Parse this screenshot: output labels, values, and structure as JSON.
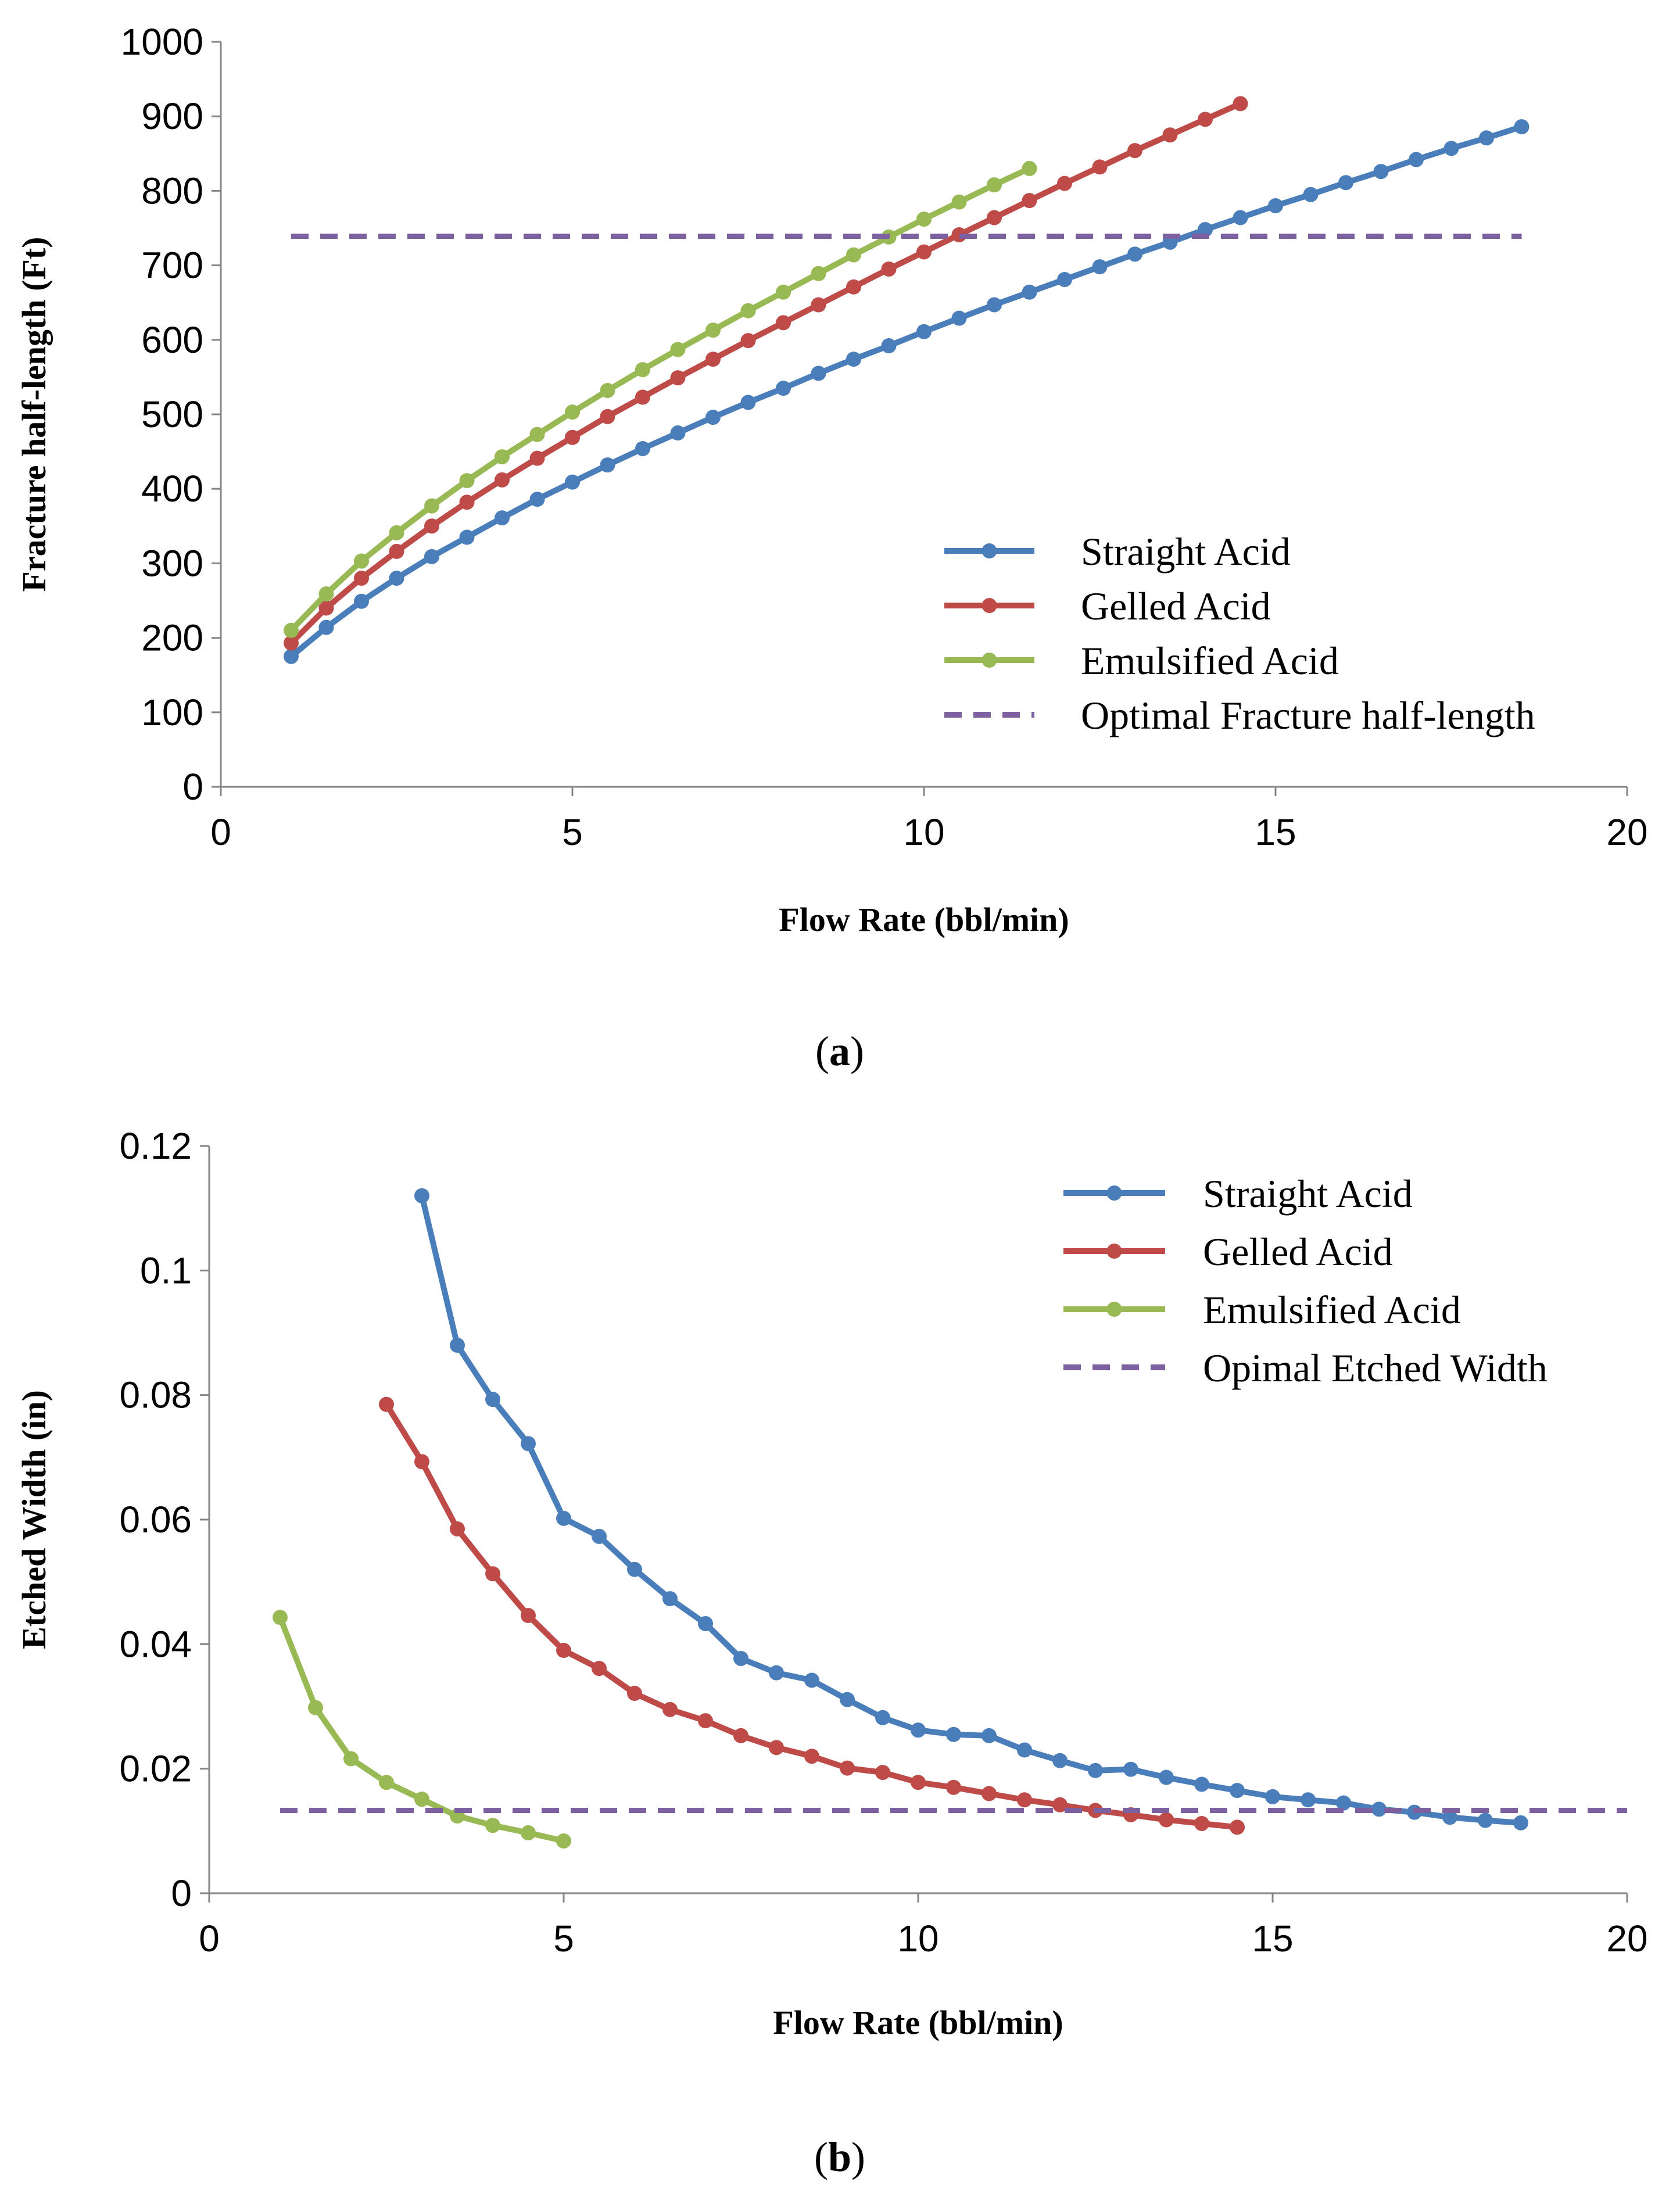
{
  "chart_data": [
    {
      "type": "line",
      "panel": "a",
      "caption": {
        "open": "(",
        "letter": "a",
        "close": ")"
      },
      "title": "",
      "xlabel": "Flow Rate (bbl/min)",
      "ylabel": "Fracture half-length (Ft)",
      "xlim": [
        0,
        20
      ],
      "ylim": [
        0,
        1000
      ],
      "xticks": [
        "0",
        "5",
        "10",
        "15",
        "20"
      ],
      "yticks": [
        "0",
        "100",
        "200",
        "300",
        "400",
        "500",
        "600",
        "700",
        "800",
        "900",
        "1000"
      ],
      "legend_position": "bottom-right",
      "series": [
        {
          "name": "Straight Acid",
          "color": "#4a7ebb",
          "marker": true,
          "dashed": false,
          "x": [
            1,
            1.5,
            2,
            2.5,
            3,
            3.5,
            4,
            4.5,
            5,
            5.5,
            6,
            6.5,
            7,
            7.5,
            8,
            8.5,
            9,
            9.5,
            10,
            10.5,
            11,
            11.5,
            12,
            12.5,
            13,
            13.5,
            14,
            14.5,
            15,
            15.5,
            16,
            16.5,
            17,
            17.5,
            18,
            18.5
          ],
          "y": [
            175,
            214,
            249,
            280,
            309,
            335,
            361,
            386,
            409,
            432,
            454,
            475,
            496,
            516,
            535,
            555,
            574,
            592,
            611,
            629,
            647,
            664,
            681,
            698,
            715,
            731,
            748,
            764,
            780,
            795,
            811,
            826,
            842,
            857,
            871,
            886
          ]
        },
        {
          "name": "Gelled Acid",
          "color": "#be4b48",
          "marker": true,
          "dashed": false,
          "x": [
            1,
            1.5,
            2,
            2.5,
            3,
            3.5,
            4,
            4.5,
            5,
            5.5,
            6,
            6.5,
            7,
            7.5,
            8,
            8.5,
            9,
            9.5,
            10,
            10.5,
            11,
            11.5,
            12,
            12.5,
            13,
            13.5,
            14,
            14.5
          ],
          "y": [
            193,
            240,
            280,
            316,
            350,
            382,
            412,
            441,
            469,
            497,
            523,
            549,
            574,
            599,
            623,
            647,
            671,
            695,
            718,
            741,
            764,
            787,
            810,
            832,
            854,
            875,
            896,
            917
          ]
        },
        {
          "name": "Emulsified Acid",
          "color": "#98b954",
          "marker": true,
          "dashed": false,
          "x": [
            1,
            1.5,
            2,
            2.5,
            3,
            3.5,
            4,
            4.5,
            5,
            5.5,
            6,
            6.5,
            7,
            7.5,
            8,
            8.5,
            9,
            9.5,
            10,
            10.5,
            11,
            11.5
          ],
          "y": [
            210,
            259,
            303,
            341,
            377,
            411,
            443,
            473,
            503,
            532,
            560,
            587,
            613,
            639,
            664,
            689,
            714,
            738,
            762,
            785,
            808,
            830
          ]
        },
        {
          "name": "Optimal Fracture half-length",
          "color": "#7d60a0",
          "marker": false,
          "dashed": true,
          "x": [
            1,
            18.5
          ],
          "y": [
            739,
            739
          ]
        }
      ]
    },
    {
      "type": "line",
      "panel": "b",
      "caption": {
        "open": "(",
        "letter": "b",
        "close": ")"
      },
      "title": "",
      "xlabel": "Flow Rate (bbl/min)",
      "ylabel": "Etched Width (in)",
      "xlim": [
        0,
        20
      ],
      "ylim": [
        0,
        0.12
      ],
      "xticks": [
        "0",
        "5",
        "10",
        "15",
        "20"
      ],
      "yticks": [
        "0",
        "0.02",
        "0.04",
        "0.06",
        "0.08",
        "0.1",
        "0.12"
      ],
      "legend_position": "top-right",
      "series": [
        {
          "name": "Straight Acid",
          "color": "#4a7ebb",
          "marker": true,
          "dashed": false,
          "x": [
            3,
            3.5,
            4,
            4.5,
            5,
            5.5,
            6,
            6.5,
            7,
            7.5,
            8,
            8.5,
            9,
            9.5,
            10,
            10.5,
            11,
            11.5,
            12,
            12.5,
            13,
            13.5,
            14,
            14.5,
            15,
            15.5,
            16,
            16.5,
            17,
            17.5,
            18,
            18.5
          ],
          "y": [
            0.112,
            0.088,
            0.0793,
            0.0722,
            0.0602,
            0.0573,
            0.052,
            0.0473,
            0.0433,
            0.0377,
            0.0354,
            0.0342,
            0.0311,
            0.0282,
            0.0262,
            0.0255,
            0.0253,
            0.023,
            0.0213,
            0.0197,
            0.0199,
            0.0186,
            0.0175,
            0.0165,
            0.0155,
            0.015,
            0.0145,
            0.0135,
            0.013,
            0.0122,
            0.0117,
            0.0113
          ]
        },
        {
          "name": "Gelled Acid",
          "color": "#be4b48",
          "marker": true,
          "dashed": false,
          "x": [
            2.5,
            3,
            3.5,
            4,
            4.5,
            5,
            5.5,
            6,
            6.5,
            7,
            7.5,
            8,
            8.5,
            9,
            9.5,
            10,
            10.5,
            11,
            11.5,
            12,
            12.5,
            13,
            13.5,
            14,
            14.5
          ],
          "y": [
            0.0785,
            0.0693,
            0.0585,
            0.0513,
            0.0446,
            0.039,
            0.0361,
            0.0321,
            0.0295,
            0.0277,
            0.0253,
            0.0234,
            0.022,
            0.0201,
            0.0194,
            0.0178,
            0.017,
            0.016,
            0.015,
            0.0142,
            0.0133,
            0.0126,
            0.0118,
            0.0112,
            0.0106
          ]
        },
        {
          "name": "Emulsified Acid",
          "color": "#98b954",
          "marker": true,
          "dashed": false,
          "x": [
            1,
            1.5,
            2,
            2.5,
            3,
            3.5,
            4,
            4.5,
            5
          ],
          "y": [
            0.0443,
            0.0298,
            0.0216,
            0.0178,
            0.0151,
            0.0124,
            0.0109,
            0.0097,
            0.0084
          ]
        },
        {
          "name": "Opimal Etched Width",
          "color": "#7d60a0",
          "marker": false,
          "dashed": true,
          "x": [
            1,
            20
          ],
          "y": [
            0.0133,
            0.0133
          ]
        }
      ]
    }
  ]
}
